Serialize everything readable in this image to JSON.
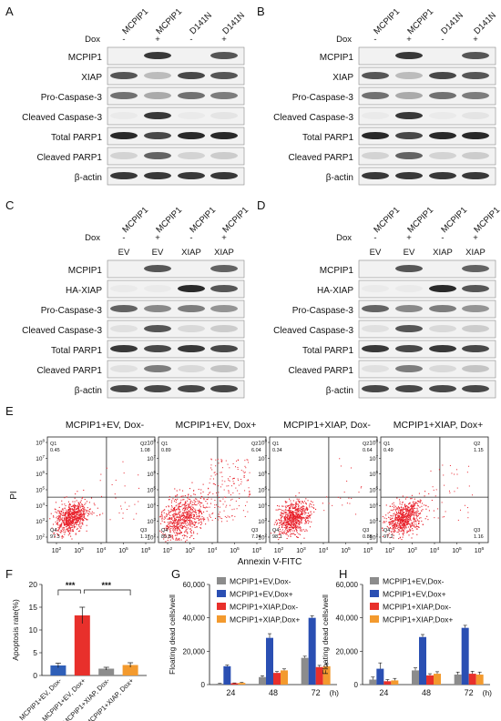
{
  "panels": {
    "A": "A",
    "B": "B",
    "C": "C",
    "D": "D",
    "E": "E",
    "F": "F",
    "G": "G",
    "H": "H"
  },
  "western": {
    "A": {
      "lanes": [
        "MCPIP1",
        "MCPIP1",
        "D141N",
        "D141N"
      ],
      "dox_label": "Dox",
      "dox": [
        "-",
        "+",
        "-",
        "+"
      ],
      "bands": [
        "MCPIP1",
        "XIAP",
        "Pro-Caspase-3",
        "Cleaved Caspase-3",
        "Total PARP1",
        "Cleaved PARP1",
        "β-actin"
      ]
    },
    "B": {
      "lanes": [
        "MCPIP1",
        "MCPIP1",
        "D141N",
        "D141N"
      ],
      "dox_label": "Dox",
      "dox": [
        "-",
        "+",
        "-",
        "+"
      ],
      "bands": [
        "MCPIP1",
        "XIAP",
        "Pro-Caspase-3",
        "Cleaved Caspase-3",
        "Total PARP1",
        "Cleaved PARP1",
        "β-actin"
      ]
    },
    "C": {
      "lanes": [
        "MCPIP1",
        "MCPIP1",
        "MCPIP1",
        "MCPIP1"
      ],
      "dox_label": "Dox",
      "dox": [
        "-",
        "+",
        "-",
        "+"
      ],
      "vector": [
        "EV",
        "EV",
        "XIAP",
        "XIAP"
      ],
      "bands": [
        "MCPIP1",
        "HA-XIAP",
        "Pro-Caspase-3",
        "Cleaved Caspase-3",
        "Total PARP1",
        "Cleaved PARP1",
        "β-actin"
      ]
    },
    "D": {
      "lanes": [
        "MCPIP1",
        "MCPIP1",
        "MCPIP1",
        "MCPIP1"
      ],
      "dox_label": "Dox",
      "dox": [
        "-",
        "+",
        "-",
        "+"
      ],
      "vector": [
        "EV",
        "EV",
        "XIAP",
        "XIAP"
      ],
      "bands": [
        "MCPIP1",
        "HA-XIAP",
        "Pro-Caspase-3",
        "Cleaved Caspase-3",
        "Total PARP1",
        "Cleaved PARP1",
        "β-actin"
      ]
    }
  },
  "flow": {
    "ylabel": "PI",
    "xlabel": "Annexin V-FITC",
    "ticks": [
      "10^2",
      "10^3",
      "10^4",
      "10^5",
      "10^6"
    ],
    "yticks": [
      "10^2",
      "10^3",
      "10^4",
      "10^5",
      "10^6",
      "10^7",
      "10^8"
    ],
    "plots": [
      {
        "title": "MCPIP1+EV, Dox-",
        "Q1": "Q1",
        "Q1v": "0.45",
        "Q2": "Q2",
        "Q2v": "1.08",
        "Q3": "Q3",
        "Q3v": "1.17",
        "Q4": "Q4",
        "Q4v": "97.3"
      },
      {
        "title": "MCPIP1+EV, Dox+",
        "Q1": "Q1",
        "Q1v": "0.89",
        "Q2": "Q2",
        "Q2v": "6.04",
        "Q3": "Q3",
        "Q3v": "7.24",
        "Q4": "Q4",
        "Q4v": "85.8"
      },
      {
        "title": "MCPIP1+XIAP, Dox-",
        "Q1": "Q1",
        "Q1v": "0.34",
        "Q2": "Q2",
        "Q2v": "0.64",
        "Q3": "Q3",
        "Q3v": "0.88",
        "Q4": "Q4",
        "Q4v": "98.1"
      },
      {
        "title": "MCPIP1+XIAP, Dox+",
        "Q1": "Q1",
        "Q1v": "0.49",
        "Q2": "Q2",
        "Q2v": "1.15",
        "Q3": "Q3",
        "Q3v": "1.16",
        "Q4": "Q4",
        "Q4v": "97.2"
      }
    ]
  },
  "chart_data": [
    {
      "type": "bar",
      "panel": "F",
      "ylabel": "Apoptosis rate(%)",
      "ylim": [
        0,
        20
      ],
      "yticks": [
        0,
        5,
        10,
        15,
        20
      ],
      "categories": [
        "MCPIP1+EV, Dox-",
        "MCPIP1+EV, Dox+",
        "MCPIP1+XIAP, Dox-",
        "MCPIP1+XIAP, Dox+"
      ],
      "values": [
        2.2,
        13.2,
        1.5,
        2.3
      ],
      "errors": [
        0.5,
        1.8,
        0.3,
        0.5
      ],
      "colors": [
        "#2f5fb8",
        "#e8302b",
        "#8c8c8c",
        "#f39a2e"
      ],
      "significance": [
        "***",
        "***"
      ]
    },
    {
      "type": "bar",
      "panel": "G",
      "ylabel": "Floating dead cells/well",
      "xunit": "(h)",
      "ylim": [
        0,
        60000
      ],
      "yticks": [
        "0",
        "20,000",
        "40,000",
        "60,000"
      ],
      "categories": [
        "24",
        "48",
        "72"
      ],
      "series": [
        {
          "name": "MCPIP1+EV,Dox-",
          "color": "#8c8c8c",
          "values": [
            500,
            4500,
            16000
          ],
          "errors": [
            200,
            800,
            1000
          ]
        },
        {
          "name": "MCPIP1+EV,Dox+",
          "color": "#2a4fb3",
          "values": [
            11000,
            28000,
            40000
          ],
          "errors": [
            700,
            2500,
            1200
          ]
        },
        {
          "name": "MCPIP1+XIAP,Dox-",
          "color": "#e8302b",
          "values": [
            800,
            7000,
            10500
          ],
          "errors": [
            200,
            800,
            1000
          ]
        },
        {
          "name": "MCPIP1+XIAP,Dox+",
          "color": "#f39a2e",
          "values": [
            1000,
            8500,
            11000
          ],
          "errors": [
            300,
            900,
            1500
          ]
        }
      ]
    },
    {
      "type": "bar",
      "panel": "H",
      "ylabel": "Floating dead cells/well",
      "xunit": "(h)",
      "ylim": [
        0,
        60000
      ],
      "yticks": [
        "0",
        "20,000",
        "40,000",
        "60,000"
      ],
      "categories": [
        "24",
        "48",
        "72"
      ],
      "series": [
        {
          "name": "MCPIP1+EV,Dox-",
          "color": "#8c8c8c",
          "values": [
            3000,
            8500,
            6000
          ],
          "errors": [
            1500,
            1500,
            1500
          ]
        },
        {
          "name": "MCPIP1+EV,Dox+",
          "color": "#2a4fb3",
          "values": [
            9500,
            28500,
            34000
          ],
          "errors": [
            3500,
            1500,
            1500
          ]
        },
        {
          "name": "MCPIP1+XIAP,Dox-",
          "color": "#e8302b",
          "values": [
            2000,
            5500,
            6500
          ],
          "errors": [
            1000,
            1000,
            1500
          ]
        },
        {
          "name": "MCPIP1+XIAP,Dox+",
          "color": "#f39a2e",
          "values": [
            2500,
            6500,
            6000
          ],
          "errors": [
            1200,
            1200,
            1500
          ]
        }
      ]
    }
  ]
}
